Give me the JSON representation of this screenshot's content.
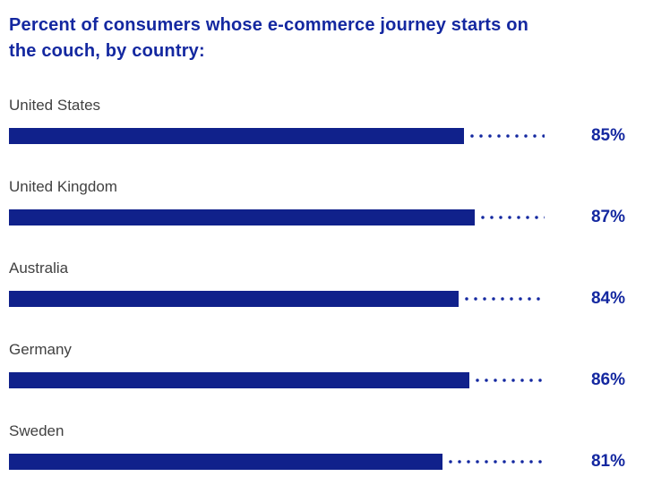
{
  "title": "Percent of consumers whose e-commerce journey starts on the couch, by country:",
  "colors": {
    "accent": "#1428A0",
    "bar": "#10218B",
    "label": "#414141",
    "background": "#FFFFFF"
  },
  "chart_data": {
    "type": "bar",
    "orientation": "horizontal",
    "title": "Percent of consumers whose e-commerce journey starts on the couch, by country:",
    "categories": [
      "United States",
      "United Kingdom",
      "Australia",
      "Germany",
      "Sweden"
    ],
    "values": [
      85,
      87,
      84,
      86,
      81
    ],
    "value_suffix": "%",
    "xlabel": "",
    "ylabel": "",
    "xlim": [
      0,
      100
    ],
    "grid": false,
    "legend": "none",
    "style_notes": "deep blue bars with dotted leader lines to right-aligned bold blue percentage labels; gray country labels above each bar"
  }
}
